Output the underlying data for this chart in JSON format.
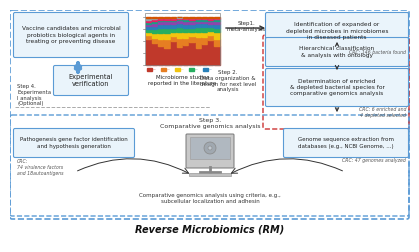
{
  "title": "Reverse Microbiomics (RM)",
  "bg_color": "#ffffff",
  "step1_label": "Step1.\nmeta-analysis",
  "step2_label": "Step 2.\nData organization &\ndesign for next level\nanalysis",
  "step3_label": "Step 3.\nComparative genomics analysis",
  "step4_label": "Step 4.\nExperimenta\nl analysis\n(Optional)",
  "box1_text": "Vaccine candidates and microbial\nprobiotics biological agents in\ntreating or preventing disease",
  "box2_text": "Experimental\nverification",
  "box3_text": "Identification of expanded or\ndepleted microbes in microbiomes\nin diseased patients",
  "box4_text": "Hierarchical classification\n& analysis with ontology",
  "box5_text": "Determination of enriched\n& depleted bacterial species for\ncomparative genomics analysis",
  "box6_text": "Pathogenesis gene factor identification\nand hypothesis generation",
  "box7_text": "Genome sequence extraction from\ndatabases (e.g., NCBI Genome, ...)",
  "crc1_text": "CRC: 146 bacteria found",
  "crc2_text": "CRC: 6 enriched and\n4 depleted selected",
  "crc3_text": "CRC:\n74 virulence factors\nand 18autoantigens",
  "crc4_text": "CRC: 47 genomes analyzed",
  "lit_text": "Microbiome studies\nreported in the literature",
  "genomics_text": "Comparative genomics analysis using criteria, e.g.,\nsubcellular localization and adhesin",
  "outer_box_color": "#5b9bd5",
  "red_box_color": "#cc3333",
  "bottom_box_color": "#5b9bd5",
  "arrow_blue": "#5b9bd5",
  "arrow_black": "#333333",
  "box_fill": "#eaf4fb",
  "box_edge": "#5b9bd5",
  "bar_colors": [
    "#c0392b",
    "#e67e22",
    "#f1c40f",
    "#27ae60",
    "#2980b9",
    "#8e44ad",
    "#16a085",
    "#e91e63",
    "#95a5a6",
    "#d35400"
  ],
  "bar_data": [
    [
      0.55,
      0.08,
      0.07,
      0.06,
      0.05,
      0.05,
      0.04,
      0.05,
      0.03,
      0.02
    ],
    [
      0.45,
      0.12,
      0.1,
      0.08,
      0.07,
      0.06,
      0.05,
      0.04,
      0.02,
      0.01
    ],
    [
      0.4,
      0.15,
      0.12,
      0.1,
      0.08,
      0.06,
      0.04,
      0.03,
      0.01,
      0.01
    ],
    [
      0.35,
      0.2,
      0.12,
      0.1,
      0.08,
      0.06,
      0.04,
      0.03,
      0.01,
      0.01
    ],
    [
      0.5,
      0.1,
      0.1,
      0.08,
      0.07,
      0.06,
      0.04,
      0.03,
      0.01,
      0.01
    ],
    [
      0.38,
      0.18,
      0.14,
      0.1,
      0.08,
      0.06,
      0.03,
      0.02,
      0.01,
      0.0
    ],
    [
      0.42,
      0.14,
      0.12,
      0.1,
      0.08,
      0.06,
      0.04,
      0.02,
      0.01,
      0.01
    ],
    [
      0.48,
      0.12,
      0.1,
      0.08,
      0.07,
      0.06,
      0.04,
      0.03,
      0.01,
      0.01
    ],
    [
      0.36,
      0.22,
      0.12,
      0.1,
      0.07,
      0.05,
      0.04,
      0.02,
      0.01,
      0.01
    ],
    [
      0.44,
      0.14,
      0.12,
      0.1,
      0.07,
      0.05,
      0.04,
      0.02,
      0.01,
      0.01
    ],
    [
      0.52,
      0.1,
      0.09,
      0.08,
      0.07,
      0.05,
      0.04,
      0.03,
      0.01,
      0.01
    ],
    [
      0.39,
      0.16,
      0.13,
      0.1,
      0.08,
      0.06,
      0.04,
      0.02,
      0.01,
      0.01
    ]
  ]
}
